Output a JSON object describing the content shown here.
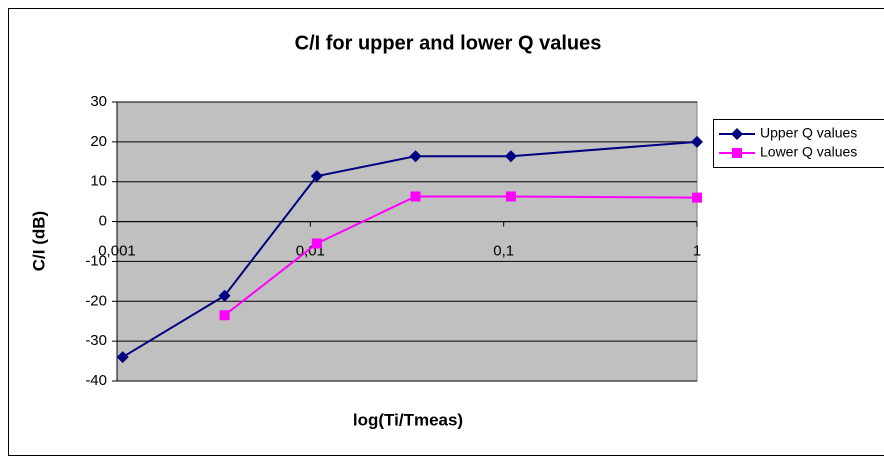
{
  "chart_data": {
    "type": "line",
    "title": "C/I for upper and lower Q values",
    "x_label": "log(Ti/Tmeas)",
    "y_label": "C/I (dB)",
    "x_log": true,
    "xlim": [
      0.001,
      1
    ],
    "xticks": [
      {
        "value": 0.001,
        "label": "0,001"
      },
      {
        "value": 0.01,
        "label": "0,01"
      },
      {
        "value": 0.1,
        "label": "0,1"
      },
      1
    ],
    "ylim": [
      -40,
      30
    ],
    "yticks": [
      30,
      20,
      10,
      0,
      -10,
      -20,
      -30,
      -40
    ],
    "grid": true,
    "legend": "right",
    "series": [
      {
        "name": "Upper Q values",
        "color": "#000080",
        "marker": "diamond",
        "x": [
          0.00107,
          0.0036,
          0.0108,
          0.035,
          0.109,
          1
        ],
        "values": [
          -34,
          -18.6,
          11.4,
          16.4,
          16.4,
          20
        ]
      },
      {
        "name": "Lower Q values",
        "color": "#ff00ff",
        "marker": "square",
        "x": [
          0.0036,
          0.0108,
          0.035,
          0.109,
          1
        ],
        "values": [
          -23.5,
          -5.5,
          6.3,
          6.3,
          6
        ]
      }
    ]
  }
}
